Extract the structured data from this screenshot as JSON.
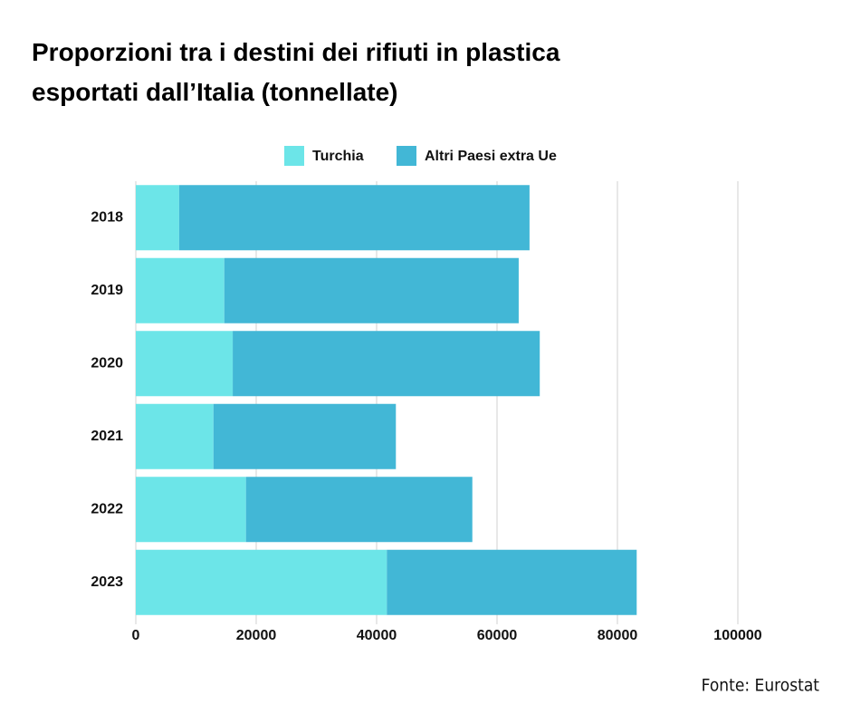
{
  "chart_data": {
    "type": "stacked-barh",
    "title": "Proporzioni tra i destini dei rifiuti in plastica esportati dall’Italia (tonnellate)",
    "source": "Fonte: Eurostat",
    "categories": [
      "2018",
      "2019",
      "2020",
      "2021",
      "2022",
      "2023"
    ],
    "series": [
      {
        "name": "Turchia",
        "color": "#6ce5e8",
        "values": [
          7200,
          14700,
          16100,
          12900,
          18300,
          41700
        ]
      },
      {
        "name": "Altri Paesi extra Ue",
        "color": "#42b7d6",
        "values": [
          58200,
          48900,
          51000,
          30300,
          37600,
          41500
        ]
      }
    ],
    "xlim": [
      0,
      100000
    ],
    "xticks": [
      0,
      20000,
      40000,
      60000,
      80000,
      100000
    ],
    "grid": true,
    "legend": "top"
  }
}
